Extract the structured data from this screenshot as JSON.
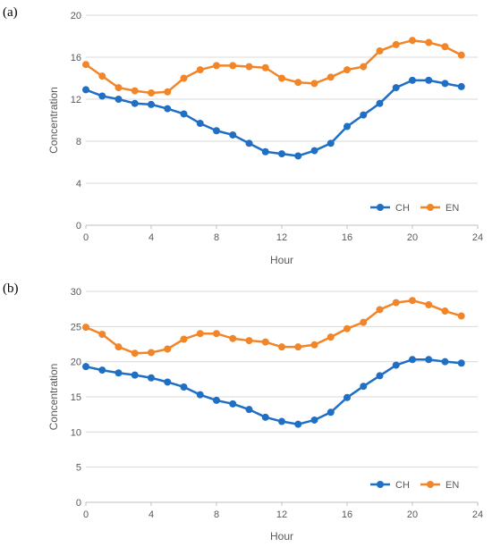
{
  "chart_data": [
    {
      "type": "line",
      "panel_label": "(a)",
      "xlabel": "Hour",
      "ylabel": "Concentration",
      "xlim": [
        0,
        24
      ],
      "ylim": [
        0,
        20
      ],
      "xticks": [
        0,
        4,
        8,
        12,
        16,
        20,
        24
      ],
      "yticks": [
        0,
        4,
        8,
        12,
        16,
        20
      ],
      "grid": "horizontal",
      "legend": "bottom-right",
      "x": [
        0,
        1,
        2,
        3,
        4,
        5,
        6,
        7,
        8,
        9,
        10,
        11,
        12,
        13,
        14,
        15,
        16,
        17,
        18,
        19,
        20,
        21,
        22,
        23
      ],
      "series": [
        {
          "name": "CH",
          "color": "#1f6fc5",
          "values": [
            12.9,
            12.3,
            12.0,
            11.6,
            11.5,
            11.1,
            10.6,
            9.7,
            9.0,
            8.6,
            7.8,
            7.0,
            6.8,
            6.6,
            7.1,
            7.8,
            9.4,
            10.5,
            11.6,
            13.1,
            13.8,
            13.8,
            13.5,
            13.2
          ]
        },
        {
          "name": "EN",
          "color": "#f28527",
          "values": [
            15.3,
            14.2,
            13.1,
            12.8,
            12.6,
            12.7,
            14.0,
            14.8,
            15.2,
            15.2,
            15.1,
            15.0,
            14.0,
            13.6,
            13.5,
            14.1,
            14.8,
            15.1,
            16.6,
            17.2,
            17.6,
            17.4,
            17.0,
            16.2
          ]
        }
      ]
    },
    {
      "type": "line",
      "panel_label": "(b)",
      "xlabel": "Hour",
      "ylabel": "Concentration",
      "xlim": [
        0,
        24
      ],
      "ylim": [
        0,
        30
      ],
      "xticks": [
        0,
        4,
        8,
        12,
        16,
        20,
        24
      ],
      "yticks": [
        0,
        5,
        10,
        15,
        20,
        25,
        30
      ],
      "grid": "horizontal",
      "legend": "bottom-right",
      "x": [
        0,
        1,
        2,
        3,
        4,
        5,
        6,
        7,
        8,
        9,
        10,
        11,
        12,
        13,
        14,
        15,
        16,
        17,
        18,
        19,
        20,
        21,
        22,
        23
      ],
      "series": [
        {
          "name": "CH",
          "color": "#1f6fc5",
          "values": [
            19.3,
            18.8,
            18.4,
            18.1,
            17.7,
            17.1,
            16.4,
            15.3,
            14.5,
            14.0,
            13.2,
            12.1,
            11.5,
            11.1,
            11.7,
            12.8,
            14.9,
            16.5,
            18.0,
            19.5,
            20.3,
            20.3,
            20.0,
            19.8
          ]
        },
        {
          "name": "EN",
          "color": "#f28527",
          "values": [
            24.9,
            23.9,
            22.1,
            21.2,
            21.3,
            21.8,
            23.2,
            24.0,
            24.0,
            23.3,
            23.0,
            22.8,
            22.1,
            22.1,
            22.4,
            23.5,
            24.7,
            25.6,
            27.4,
            28.4,
            28.7,
            28.1,
            27.2,
            26.5
          ]
        }
      ]
    }
  ]
}
